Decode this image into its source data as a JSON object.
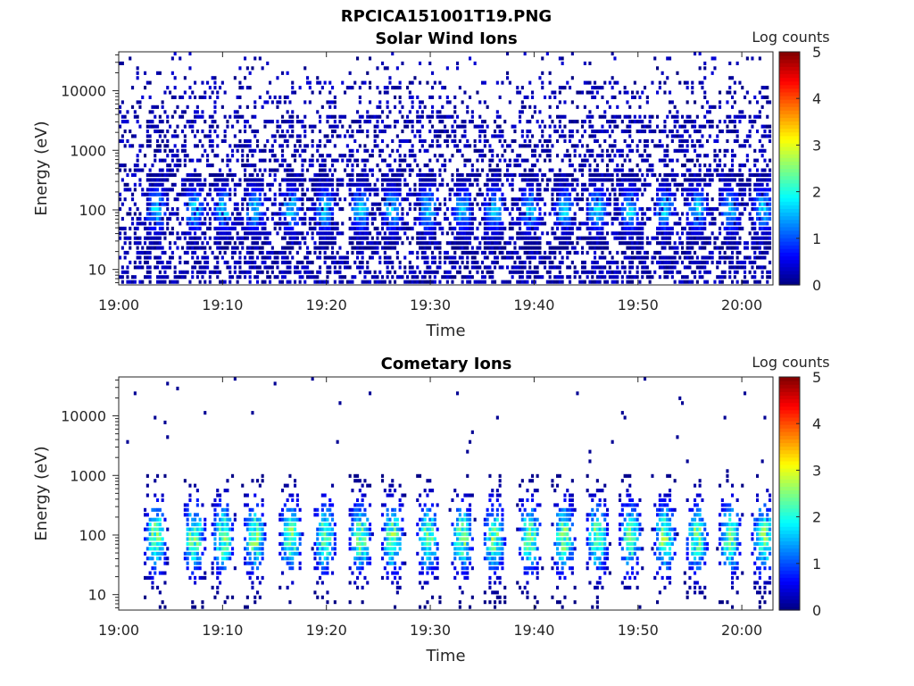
{
  "figure_title": "RPCICA151001T19.PNG",
  "colorbar_ticks": [
    "0",
    "1",
    "2",
    "3",
    "4",
    "5"
  ],
  "colorbar_range": [
    0,
    5
  ],
  "colormap": "jet",
  "chart_data": [
    {
      "type": "heatmap",
      "title": "Solar Wind Ions",
      "xlabel": "Time",
      "ylabel": "Energy (eV)",
      "yscale": "log",
      "ylim": [
        5.5,
        45000
      ],
      "xlim": [
        "19:00",
        "20:03"
      ],
      "x_ticks": [
        "19:00",
        "19:10",
        "19:20",
        "19:30",
        "19:40",
        "19:50",
        "20:00"
      ],
      "y_ticks": [
        "10",
        "100",
        "1000",
        "10000"
      ],
      "colorbar_label": "Log counts",
      "colorbar_range": [
        0,
        5
      ],
      "peak_log_counts": 2.0,
      "ion_bursts_start_min": [
        2.5,
        6.2,
        9.0,
        12.0,
        15.5,
        18.8,
        22.2,
        25.3,
        28.7,
        32.0,
        35.1,
        38.5,
        41.8,
        45.0,
        48.2,
        51.5,
        54.6,
        57.8,
        61.0
      ],
      "burst_center_energy_eV": 90,
      "background": "sparse single counts (log counts ~0-0.5) spread from ~5 eV to ~30000 eV, densest 10-3000 eV"
    },
    {
      "type": "heatmap",
      "title": "Cometary Ions",
      "xlabel": "Time",
      "ylabel": "Energy (eV)",
      "yscale": "log",
      "ylim": [
        5.5,
        45000
      ],
      "xlim": [
        "19:00",
        "20:03"
      ],
      "x_ticks": [
        "19:00",
        "19:10",
        "19:20",
        "19:30",
        "19:40",
        "19:50",
        "20:00"
      ],
      "y_ticks": [
        "10",
        "100",
        "1000",
        "10000"
      ],
      "colorbar_label": "Log counts",
      "colorbar_range": [
        0,
        5
      ],
      "peak_log_counts": 3.0,
      "ion_bursts_start_min": [
        2.5,
        6.2,
        9.0,
        12.0,
        15.5,
        18.8,
        22.2,
        25.3,
        28.7,
        32.0,
        35.1,
        38.5,
        41.8,
        45.0,
        48.2,
        51.5,
        54.6,
        57.8,
        61.0
      ],
      "burst_center_energy_eV": 90,
      "burst_energy_range_eV": [
        6,
        800
      ],
      "background": "isolated single counts above 1000 eV"
    }
  ]
}
